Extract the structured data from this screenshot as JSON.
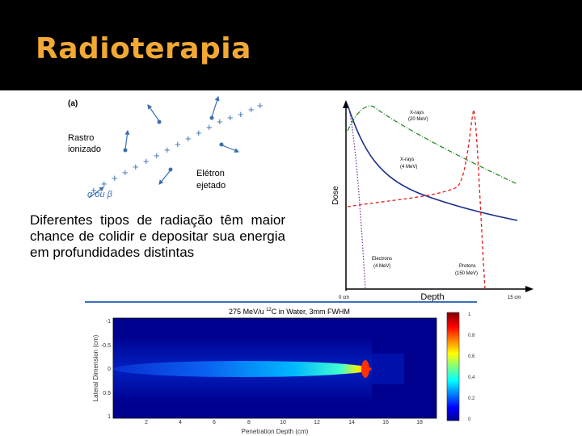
{
  "header": {
    "title": "Radioterapia"
  },
  "diagram": {
    "panel_label": "(a)",
    "track_lines": [
      "Rastro",
      "ionizado"
    ],
    "electron_lines": [
      "Elétron",
      "ejetado"
    ],
    "particle": "α ou β"
  },
  "body": {
    "text": "Diferentes tipos de radiação têm maior chance de colidir e depositar sua energia em profundidades distintas"
  },
  "dose_chart": {
    "y_label": "Dose",
    "x_label": "Depth",
    "x_start": "0 cm",
    "x_end": "15 cm",
    "curves": [
      {
        "label_lines": [
          "X-rays",
          "(20 MeV)"
        ]
      },
      {
        "label_lines": [
          "X-rays",
          "(4 MeV)"
        ]
      },
      {
        "label_lines": [
          "Electrons",
          "(4 MeV)"
        ]
      },
      {
        "label_lines": [
          "Protons",
          "(150 MeV)"
        ]
      }
    ]
  },
  "heatmap": {
    "title_prefix": "275 MeV/u ",
    "title_superscript": "12",
    "title_suffix": "C in Water, 3mm FWHM",
    "x_label": "Penetration Depth (cm)",
    "y_label": "Lateral Dimension (cm)",
    "x_ticks": [
      "2",
      "4",
      "6",
      "8",
      "10",
      "12",
      "14",
      "16",
      "18"
    ],
    "y_ticks": [
      "-1",
      "-0.5",
      "0",
      "0.5",
      "1"
    ],
    "colorbar_ticks": [
      "1",
      "0.8",
      "0.6",
      "0.4",
      "0.2",
      "0"
    ]
  }
}
